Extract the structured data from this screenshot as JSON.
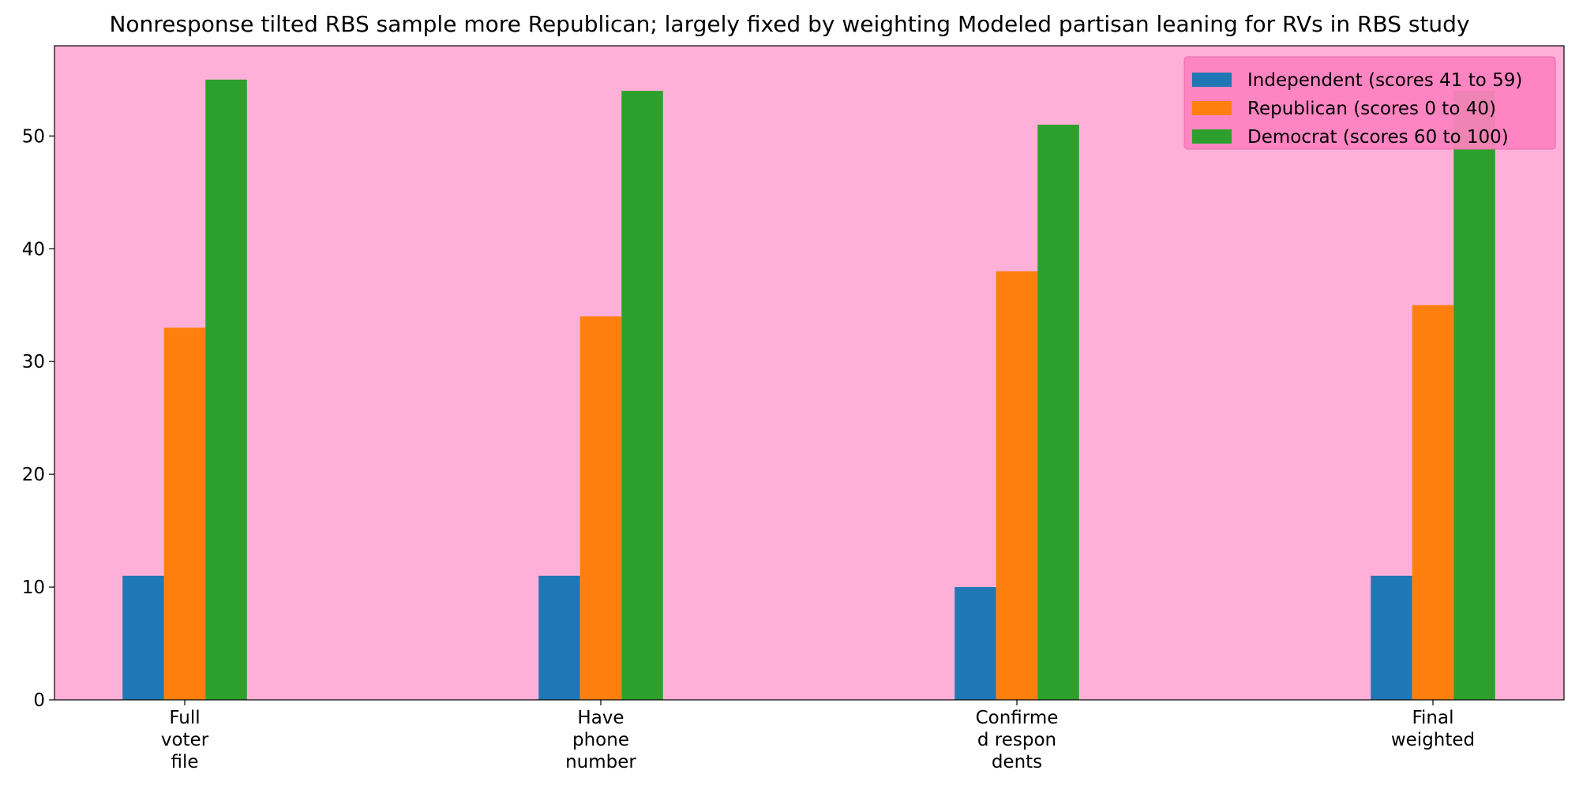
{
  "chart_data": {
    "type": "bar",
    "title": "Nonresponse tilted RBS sample more Republican; largely fixed by weighting Modeled partisan leaning for RVs in RBS study",
    "xlabel": "",
    "ylabel": "",
    "categories": [
      [
        "Full",
        "voter",
        "file"
      ],
      [
        "Have",
        "phone",
        "number"
      ],
      [
        "Confirme",
        "d respon",
        "dents"
      ],
      [
        "Final",
        "weighted"
      ]
    ],
    "series": [
      {
        "name": "Independent (scores 41 to 59)",
        "color": "#1f77b4",
        "values": [
          11,
          11,
          10,
          11
        ]
      },
      {
        "name": "Republican (scores 0 to 40)",
        "color": "#ff7f0e",
        "values": [
          33,
          34,
          38,
          35
        ]
      },
      {
        "name": "Democrat (scores 60 to 100)",
        "color": "#2ca02c",
        "values": [
          55,
          54,
          51,
          54
        ]
      }
    ],
    "ylim": [
      0,
      58
    ],
    "yticks": [
      0,
      10,
      20,
      30,
      40,
      50
    ],
    "grid": false,
    "legend_position": "top-right",
    "plot_background": "#ffb0d8",
    "legend_background": "#ff80c0"
  }
}
